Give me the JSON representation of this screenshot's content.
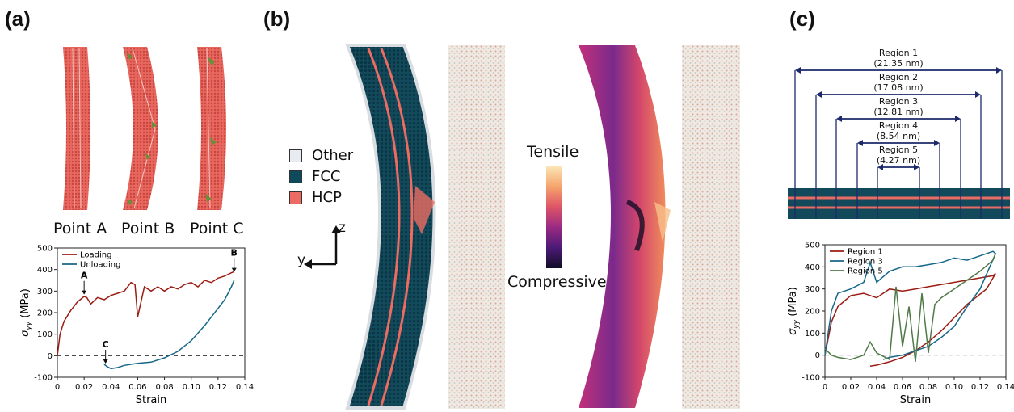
{
  "panels": {
    "a": "(a)",
    "b": "(b)",
    "c": "(c)"
  },
  "point_labels": [
    "Point A",
    "Point B",
    "Point C"
  ],
  "structure_legend": [
    {
      "label": "Other",
      "color": "#e8ebef"
    },
    {
      "label": "FCC",
      "color": "#0f4a5c"
    },
    {
      "label": "HCP",
      "color": "#ec6b62"
    }
  ],
  "colorbar": {
    "top": "Tensile",
    "bottom": "Compressive"
  },
  "axes_glyph": {
    "z": "z",
    "y": "y"
  },
  "regions": [
    {
      "name": "Region 1",
      "size": "(21.35 nm)"
    },
    {
      "name": "Region 2",
      "size": "(17.08 nm)"
    },
    {
      "name": "Region 3",
      "size": "(12.81 nm)"
    },
    {
      "name": "Region 4",
      "size": "(8.54 nm)"
    },
    {
      "name": "Region 5",
      "size": "(4.27 nm)"
    }
  ],
  "chart_data": [
    {
      "type": "line",
      "xlabel": "Strain",
      "ylabel": "σ_yy (MPa)",
      "xlim": [
        0,
        0.14
      ],
      "ylim": [
        -100,
        500
      ],
      "xticks": [
        "0",
        "0.02",
        "0.04",
        "0.06",
        "0.08",
        "0.10",
        "0.12",
        "0.14"
      ],
      "yticks": [
        "-100",
        "0",
        "100",
        "200",
        "300",
        "400",
        "500"
      ],
      "legend_position": "top-left",
      "annotations": [
        {
          "text": "A",
          "x": 0.02,
          "y": 280
        },
        {
          "text": "B",
          "x": 0.132,
          "y": 385
        },
        {
          "text": "C",
          "x": 0.036,
          "y": -40
        }
      ],
      "series": [
        {
          "name": "Loading",
          "color": "#9b1c12",
          "x": [
            0,
            0.002,
            0.005,
            0.01,
            0.015,
            0.02,
            0.022,
            0.025,
            0.03,
            0.035,
            0.04,
            0.045,
            0.05,
            0.055,
            0.058,
            0.06,
            0.065,
            0.07,
            0.075,
            0.08,
            0.085,
            0.09,
            0.095,
            0.1,
            0.105,
            0.11,
            0.115,
            0.12,
            0.125,
            0.13,
            0.132
          ],
          "values": [
            0,
            100,
            160,
            210,
            250,
            275,
            270,
            240,
            270,
            260,
            280,
            290,
            300,
            340,
            330,
            180,
            320,
            300,
            320,
            300,
            320,
            310,
            330,
            340,
            320,
            350,
            340,
            360,
            370,
            385,
            390
          ]
        },
        {
          "name": "Unloading",
          "color": "#17678a",
          "x": [
            0.132,
            0.13,
            0.125,
            0.12,
            0.115,
            0.11,
            0.1,
            0.09,
            0.08,
            0.07,
            0.06,
            0.05,
            0.045,
            0.04,
            0.037,
            0.035
          ],
          "values": [
            350,
            320,
            260,
            220,
            180,
            140,
            70,
            20,
            -10,
            -30,
            -35,
            -45,
            -55,
            -60,
            -50,
            -40
          ]
        }
      ]
    },
    {
      "type": "line",
      "xlabel": "Strain",
      "ylabel": "σ_yy (MPa)",
      "xlim": [
        0,
        0.14
      ],
      "ylim": [
        -100,
        500
      ],
      "xticks": [
        "0",
        "0.02",
        "0.04",
        "0.06",
        "0.08",
        "0.10",
        "0.12",
        "0.14"
      ],
      "yticks": [
        "-100",
        "0",
        "100",
        "200",
        "300",
        "400",
        "500"
      ],
      "legend_position": "top-left",
      "series": [
        {
          "name": "Region 1",
          "color": "#9b1c12",
          "x": [
            0,
            0.005,
            0.01,
            0.02,
            0.03,
            0.04,
            0.05,
            0.06,
            0.07,
            0.08,
            0.09,
            0.1,
            0.11,
            0.12,
            0.13,
            0.132,
            0.125,
            0.11,
            0.1,
            0.09,
            0.08,
            0.07,
            0.06,
            0.05,
            0.04,
            0.035
          ],
          "values": [
            0,
            150,
            220,
            270,
            280,
            260,
            300,
            290,
            300,
            310,
            320,
            330,
            340,
            350,
            360,
            370,
            300,
            230,
            170,
            110,
            60,
            20,
            -10,
            -30,
            -45,
            -50
          ]
        },
        {
          "name": "Region 3",
          "color": "#17678a",
          "x": [
            0,
            0.005,
            0.01,
            0.02,
            0.03,
            0.035,
            0.04,
            0.05,
            0.06,
            0.07,
            0.08,
            0.09,
            0.1,
            0.11,
            0.12,
            0.13,
            0.132,
            0.12,
            0.11,
            0.1,
            0.09,
            0.08,
            0.07,
            0.06,
            0.05,
            0.045
          ],
          "values": [
            0,
            200,
            280,
            300,
            330,
            420,
            330,
            380,
            400,
            400,
            410,
            420,
            440,
            430,
            450,
            470,
            460,
            300,
            220,
            130,
            80,
            40,
            20,
            0,
            -10,
            -20
          ]
        },
        {
          "name": "Region 5",
          "color": "#4f7a47",
          "x": [
            0,
            0.005,
            0.01,
            0.02,
            0.03,
            0.035,
            0.04,
            0.05,
            0.055,
            0.06,
            0.065,
            0.07,
            0.075,
            0.08,
            0.085,
            0.09,
            0.1,
            0.11,
            0.12,
            0.13,
            0.132
          ],
          "values": [
            30,
            0,
            -10,
            -20,
            0,
            60,
            10,
            -20,
            310,
            40,
            220,
            -30,
            280,
            10,
            230,
            260,
            300,
            340,
            380,
            430,
            460
          ]
        }
      ]
    }
  ]
}
